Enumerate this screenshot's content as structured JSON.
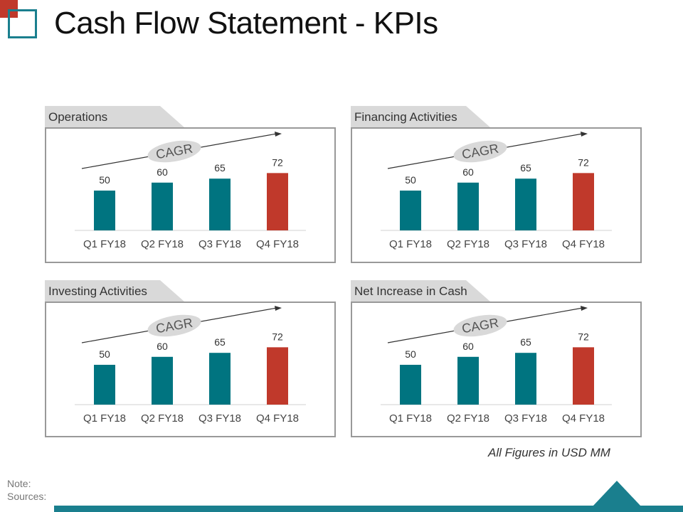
{
  "title": "Cash Flow Statement - KPIs",
  "footnote": "All Figures in USD MM",
  "note_label": "Note:",
  "sources_label": "Sources:",
  "cagr_label": "CAGR",
  "colors": {
    "teal": "#007480",
    "red": "#c0392b",
    "accent": "#1a7f8e"
  },
  "chart_data": [
    {
      "type": "bar",
      "title": "Operations",
      "categories": [
        "Q1 FY18",
        "Q2 FY18",
        "Q3 FY18",
        "Q4 FY18"
      ],
      "values": [
        50,
        60,
        65,
        72
      ],
      "highlight_index": 3
    },
    {
      "type": "bar",
      "title": "Financing Activities",
      "categories": [
        "Q1 FY18",
        "Q2 FY18",
        "Q3 FY18",
        "Q4 FY18"
      ],
      "values": [
        50,
        60,
        65,
        72
      ],
      "highlight_index": 3
    },
    {
      "type": "bar",
      "title": "Investing Activities",
      "categories": [
        "Q1 FY18",
        "Q2 FY18",
        "Q3 FY18",
        "Q4 FY18"
      ],
      "values": [
        50,
        60,
        65,
        72
      ],
      "highlight_index": 3
    },
    {
      "type": "bar",
      "title": "Net Increase in Cash",
      "categories": [
        "Q1 FY18",
        "Q2 FY18",
        "Q3 FY18",
        "Q4 FY18"
      ],
      "values": [
        50,
        60,
        65,
        72
      ],
      "highlight_index": 3
    }
  ]
}
